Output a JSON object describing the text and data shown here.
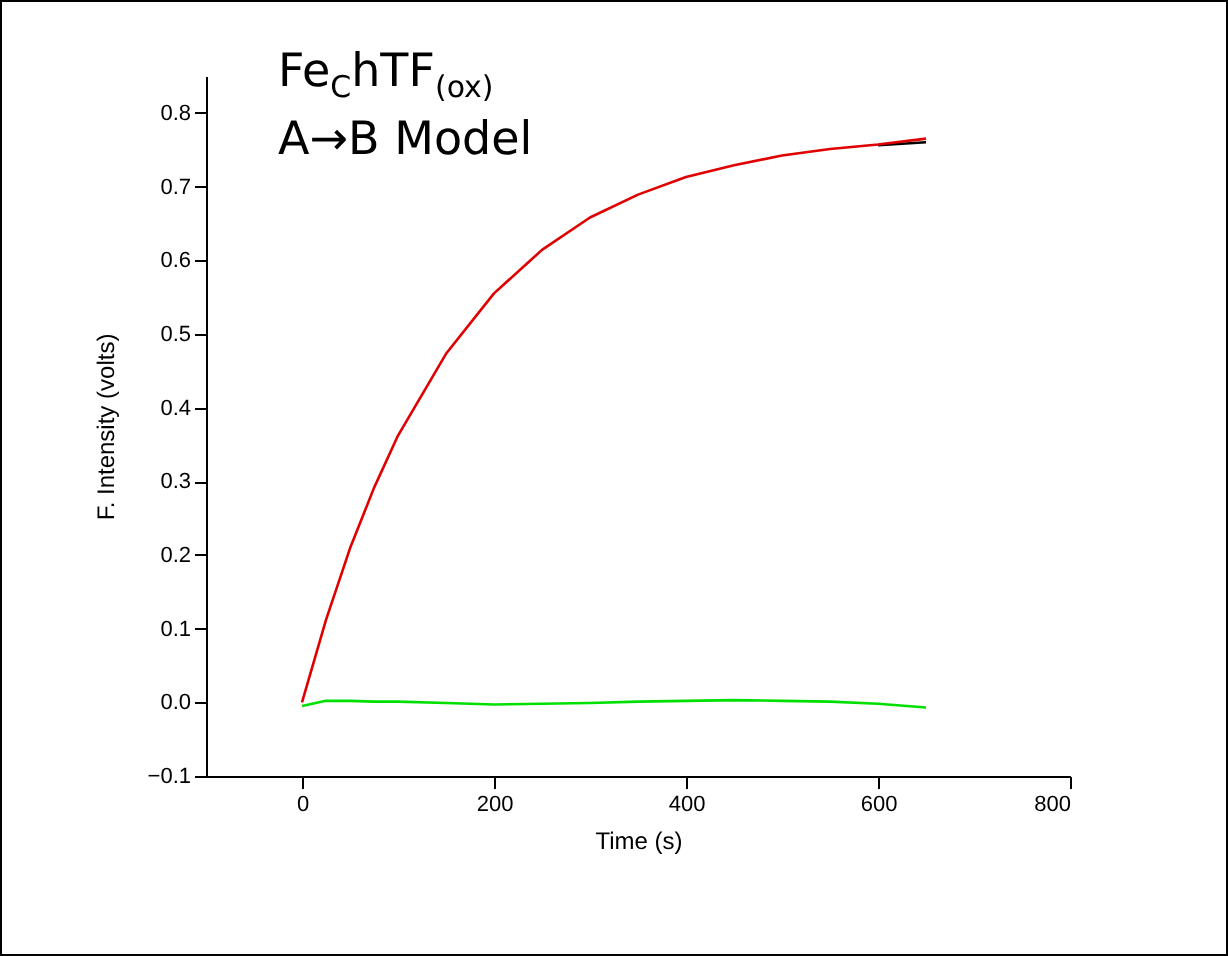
{
  "chart_data": {
    "type": "line",
    "xlabel": "Time (s)",
    "ylabel": "F. Intensity (volts)",
    "annotations": [
      "Fe$_{C}$hTF$_{(ox)}$",
      "A→B Model"
    ],
    "xlim": [
      -100,
      800
    ],
    "xticks": [
      0,
      200,
      400,
      600,
      800
    ],
    "ylim": [
      -0.1,
      0.85
    ],
    "yticks": [
      -0.1,
      {
        "value": 0,
        "label": "0.0"
      },
      0.1,
      0.2,
      0.3,
      0.4,
      0.5,
      0.6,
      0.7,
      0.8
    ],
    "grid": false,
    "legend": false,
    "marker": "none",
    "line_style": "solid",
    "x": [
      0,
      25,
      50,
      75,
      100,
      150,
      200,
      250,
      300,
      350,
      400,
      450,
      500,
      550,
      600,
      650
    ],
    "series": [
      {
        "color": "#000000",
        "values": [
          null,
          null,
          null,
          null,
          null,
          null,
          null,
          null,
          null,
          null,
          null,
          null,
          null,
          null,
          0.756,
          0.76
        ]
      },
      {
        "color": "#e00000",
        "values": [
          0,
          0.112,
          0.209,
          0.291,
          0.362,
          0.473,
          0.555,
          0.614,
          0.658,
          0.689,
          0.713,
          0.729,
          0.742,
          0.751,
          0.757,
          0.765
        ]
      },
      {
        "color": "#00e000",
        "values": [
          -0.005,
          0.002,
          0.002,
          0.001,
          0.001,
          -0.001,
          -0.003,
          -0.002,
          -0.001,
          0.001,
          0.002,
          0.003,
          0.002,
          0.001,
          -0.002,
          -0.007
        ]
      }
    ]
  }
}
